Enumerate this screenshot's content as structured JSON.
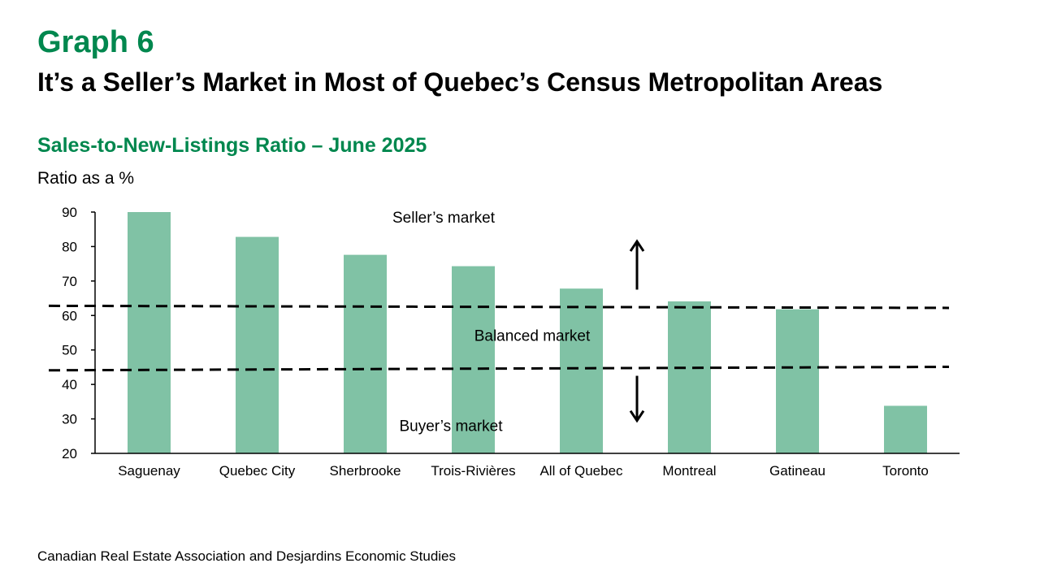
{
  "header": {
    "graph_number": "Graph 6",
    "title": "It’s a Seller’s Market in Most of Quebec’s Census Metropolitan Areas"
  },
  "footer": {
    "source": "Canadian Real Estate Association and Desjardins Economic Studies"
  },
  "chart_data": {
    "type": "bar",
    "title": "Sales-to-New-Listings Ratio – June 2025",
    "xlabel": "",
    "ylabel": "Ratio as a %",
    "categories": [
      "Saguenay",
      "Quebec City",
      "Sherbrooke",
      "Trois-Rivières",
      "All of Quebec",
      "Montreal",
      "Gatineau",
      "Toronto"
    ],
    "series": [
      {
        "values": [
          90.0,
          82.8,
          77.6,
          74.3,
          67.8,
          64.1,
          61.8,
          33.8
        ]
      }
    ],
    "ylim": [
      20,
      90
    ],
    "yticks": [
      20,
      30,
      40,
      50,
      60,
      70,
      80,
      90
    ],
    "grid": false,
    "legend": "none",
    "threshold_lines": [
      {
        "start_value": 62.8,
        "end_value": 62.2,
        "style": "dashed"
      },
      {
        "start_value": 44.1,
        "end_value": 45.1,
        "style": "dashed"
      }
    ],
    "annotations": {
      "seller": "Seller’s market",
      "balanced": "Balanced market",
      "buyer": "Buyer’s market"
    },
    "arrows": [
      {
        "direction": "up",
        "from_value": 67.5,
        "to_value": 81.5
      },
      {
        "direction": "down",
        "from_value": 42.5,
        "to_value": 29.5
      }
    ],
    "colors": {
      "bar": "#80C2A5",
      "axis": "#000000",
      "threshold": "#000000",
      "accent": "#00874E"
    }
  }
}
